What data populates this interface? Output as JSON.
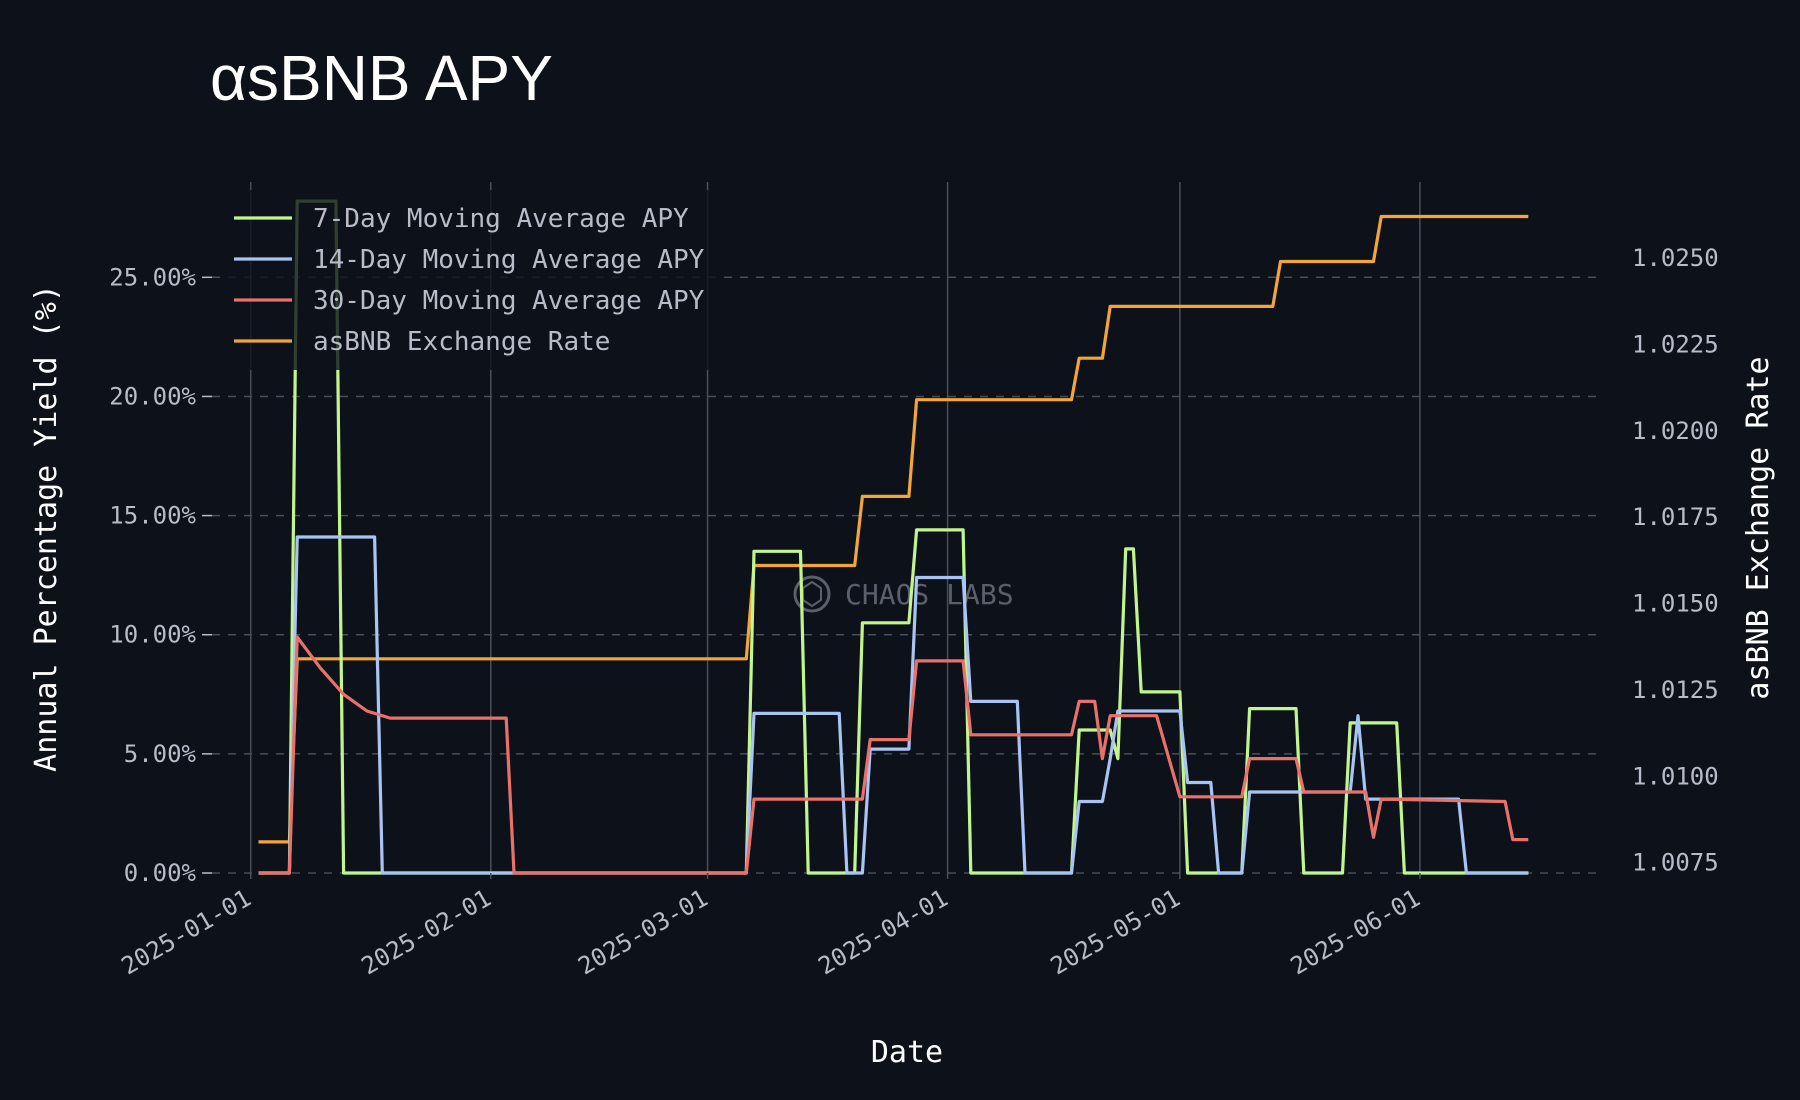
{
  "chart_data": {
    "type": "line",
    "title": "αsBNB APY",
    "xlabel": "Date",
    "ylabel": "Annual Percentage Yield (%)",
    "y2label": "asBNB Exchange Rate",
    "watermark": "CHAOS LABS",
    "x_ticks": [
      "2025-01-01",
      "2025-02-01",
      "2025-03-01",
      "2025-04-01",
      "2025-05-01",
      "2025-06-01"
    ],
    "y_ticks": [
      "0.00%",
      "5.00%",
      "10.00%",
      "15.00%",
      "20.00%",
      "25.00%"
    ],
    "y2_ticks": [
      "1.0075",
      "1.0100",
      "1.0125",
      "1.0150",
      "1.0175",
      "1.0200",
      "1.0225",
      "1.0250"
    ],
    "xlim": [
      "2024-12-27",
      "2025-06-24"
    ],
    "ylim": [
      0,
      29
    ],
    "y2lim": [
      1.0072,
      1.0272
    ],
    "grid": true,
    "legend_position": "top-left",
    "colors": {
      "background": "#0d111a",
      "grid": "#4a4e59",
      "seven_day": "#c3f58d",
      "fourteen_day": "#a9c3f2",
      "thirty_day": "#e8716b",
      "exchange_rate": "#f3a638"
    },
    "series": [
      {
        "name": "7-Day Moving Average APY",
        "axis": "left",
        "x": [
          "2025-01-02",
          "2025-01-06",
          "2025-01-07",
          "2025-01-12",
          "2025-01-13",
          "2025-01-20",
          "2025-03-06",
          "2025-03-07",
          "2025-03-13",
          "2025-03-14",
          "2025-03-20",
          "2025-03-21",
          "2025-03-27",
          "2025-03-28",
          "2025-04-03",
          "2025-04-04",
          "2025-04-10",
          "2025-04-17",
          "2025-04-18",
          "2025-04-22",
          "2025-04-23",
          "2025-04-24",
          "2025-04-25",
          "2025-04-26",
          "2025-04-27",
          "2025-04-28",
          "2025-05-01",
          "2025-05-02",
          "2025-05-09",
          "2025-05-10",
          "2025-05-16",
          "2025-05-17",
          "2025-05-22",
          "2025-05-23",
          "2025-05-29",
          "2025-05-30",
          "2025-06-05",
          "2025-06-06",
          "2025-06-15"
        ],
        "y": [
          0,
          0,
          28.2,
          28.2,
          0,
          0,
          0,
          13.5,
          13.5,
          0,
          0,
          10.5,
          10.5,
          14.4,
          14.4,
          0,
          0,
          0,
          6.0,
          6.0,
          4.8,
          13.6,
          13.6,
          7.6,
          7.6,
          7.6,
          7.6,
          0,
          0,
          6.9,
          6.9,
          0,
          0,
          6.3,
          6.3,
          0,
          0,
          0,
          0
        ]
      },
      {
        "name": "14-Day Moving Average APY",
        "axis": "left",
        "x": [
          "2025-01-02",
          "2025-01-06",
          "2025-01-07",
          "2025-01-17",
          "2025-01-18",
          "2025-03-06",
          "2025-03-07",
          "2025-03-18",
          "2025-03-19",
          "2025-03-21",
          "2025-03-22",
          "2025-03-27",
          "2025-03-28",
          "2025-04-03",
          "2025-04-04",
          "2025-04-10",
          "2025-04-11",
          "2025-04-17",
          "2025-04-18",
          "2025-04-21",
          "2025-04-22",
          "2025-04-23",
          "2025-04-24",
          "2025-04-27",
          "2025-05-01",
          "2025-05-02",
          "2025-05-05",
          "2025-05-06",
          "2025-05-09",
          "2025-05-10",
          "2025-05-16",
          "2025-05-17",
          "2025-05-23",
          "2025-05-24",
          "2025-05-25",
          "2025-06-06",
          "2025-06-07",
          "2025-06-15"
        ],
        "y": [
          0,
          0,
          14.1,
          14.1,
          0,
          0,
          6.7,
          6.7,
          0,
          0,
          5.2,
          5.2,
          12.4,
          12.4,
          7.2,
          7.2,
          0,
          0,
          3.0,
          3.0,
          4.8,
          6.8,
          6.8,
          6.8,
          6.8,
          3.8,
          3.8,
          0,
          0,
          3.4,
          3.4,
          3.4,
          3.4,
          6.6,
          3.1,
          3.1,
          0,
          0
        ]
      },
      {
        "name": "30-Day Moving Average APY",
        "axis": "left",
        "x": [
          "2025-01-02",
          "2025-01-06",
          "2025-01-07",
          "2025-01-10",
          "2025-01-13",
          "2025-01-16",
          "2025-01-19",
          "2025-02-03",
          "2025-02-04",
          "2025-03-06",
          "2025-03-07",
          "2025-03-21",
          "2025-03-22",
          "2025-03-27",
          "2025-03-28",
          "2025-04-03",
          "2025-04-04",
          "2025-04-17",
          "2025-04-18",
          "2025-04-20",
          "2025-04-21",
          "2025-04-22",
          "2025-04-27",
          "2025-04-28",
          "2025-05-01",
          "2025-05-09",
          "2025-05-10",
          "2025-05-16",
          "2025-05-17",
          "2025-05-19",
          "2025-05-25",
          "2025-05-26",
          "2025-05-27",
          "2025-06-12",
          "2025-06-13",
          "2025-06-15"
        ],
        "y": [
          0,
          0,
          9.9,
          8.6,
          7.5,
          6.8,
          6.5,
          6.5,
          0,
          0,
          3.1,
          3.1,
          5.6,
          5.6,
          8.9,
          8.9,
          5.8,
          5.8,
          7.2,
          7.2,
          4.8,
          6.6,
          6.6,
          6.6,
          3.2,
          3.2,
          4.8,
          4.8,
          3.4,
          3.4,
          3.4,
          1.5,
          3.1,
          3.0,
          1.4,
          1.4
        ]
      },
      {
        "name": "asBNB Exchange Rate",
        "axis": "right",
        "x": [
          "2025-01-02",
          "2025-01-06",
          "2025-01-07",
          "2025-03-06",
          "2025-03-07",
          "2025-03-20",
          "2025-03-21",
          "2025-03-27",
          "2025-03-28",
          "2025-04-17",
          "2025-04-18",
          "2025-04-21",
          "2025-04-22",
          "2025-05-13",
          "2025-05-14",
          "2025-05-26",
          "2025-05-27",
          "2025-06-15"
        ],
        "y": [
          1.0081,
          1.0081,
          1.0134,
          1.0134,
          1.0161,
          1.0161,
          1.0181,
          1.0181,
          1.0209,
          1.0209,
          1.0221,
          1.0221,
          1.0236,
          1.0236,
          1.0249,
          1.0249,
          1.0262,
          1.0262
        ]
      }
    ]
  }
}
